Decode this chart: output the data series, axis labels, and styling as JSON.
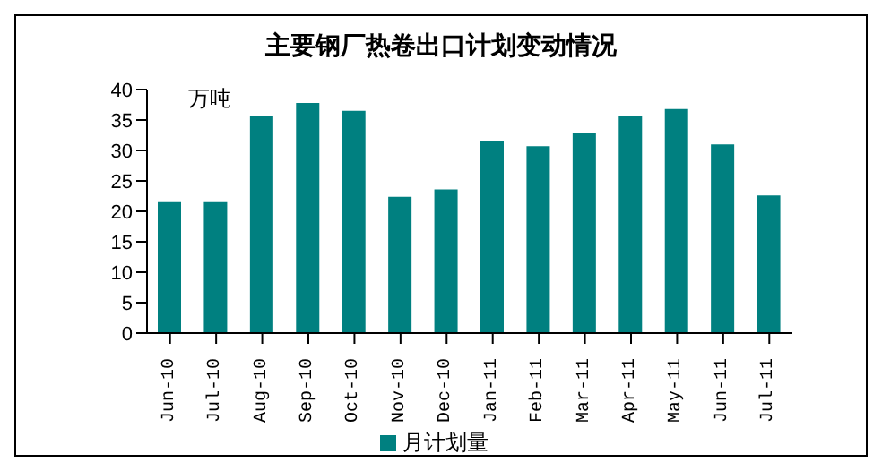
{
  "chart_data": {
    "type": "bar",
    "title": "主要钢厂热卷出口计划变动情况",
    "ylabel": "万吨",
    "categories": [
      "Jun-10",
      "Jul-10",
      "Aug-10",
      "Sep-10",
      "Oct-10",
      "Nov-10",
      "Dec-10",
      "Jan-11",
      "Feb-11",
      "Mar-11",
      "Apr-11",
      "May-11",
      "Jun-11",
      "Jul-11"
    ],
    "series": [
      {
        "name": "月计划量",
        "color": "#008080",
        "values": [
          21.5,
          21.5,
          35.7,
          37.8,
          36.5,
          22.4,
          23.6,
          31.6,
          30.7,
          32.8,
          35.7,
          36.8,
          31.0,
          22.6
        ]
      }
    ],
    "ylim": [
      0,
      40
    ],
    "yticks": [
      0,
      5,
      10,
      15,
      20,
      25,
      30,
      35,
      40
    ],
    "grid": false,
    "legend": "bottom"
  }
}
